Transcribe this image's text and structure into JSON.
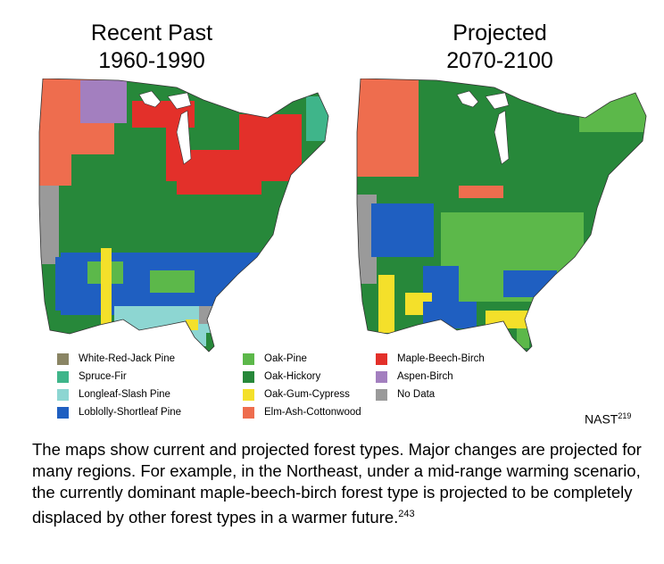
{
  "maps": [
    {
      "title_line1": "Recent Past",
      "title_line2": "1960-1990"
    },
    {
      "title_line1": "Projected",
      "title_line2": "2070-2100"
    }
  ],
  "legend": [
    {
      "label": "White-Red-Jack Pine",
      "color": "#8a8564"
    },
    {
      "label": "Spruce-Fir",
      "color": "#3fb58a"
    },
    {
      "label": "Longleaf-Slash Pine",
      "color": "#8dd6d2"
    },
    {
      "label": "Loblolly-Shortleaf Pine",
      "color": "#1f5fc1"
    },
    {
      "label": "Oak-Pine",
      "color": "#5cb84a"
    },
    {
      "label": "Oak-Hickory",
      "color": "#27883a"
    },
    {
      "label": "Oak-Gum-Cypress",
      "color": "#f4e02a"
    },
    {
      "label": "Elm-Ash-Cottonwood",
      "color": "#ee6d4e"
    },
    {
      "label": "Maple-Beech-Birch",
      "color": "#e3302a"
    },
    {
      "label": "Aspen-Birch",
      "color": "#a37fbf"
    },
    {
      "label": "No Data",
      "color": "#9a9a9a"
    }
  ],
  "source": {
    "text": "NAST",
    "ref": "219"
  },
  "caption": {
    "text": "The maps show current and projected forest types. Major changes are projected for many regions. For example, in the Northeast, under a mid-range warming scenario, the currently dominant maple-beech-birch forest type is projected to be completely displaced by other forest types in a warmer future.",
    "ref": "243"
  }
}
